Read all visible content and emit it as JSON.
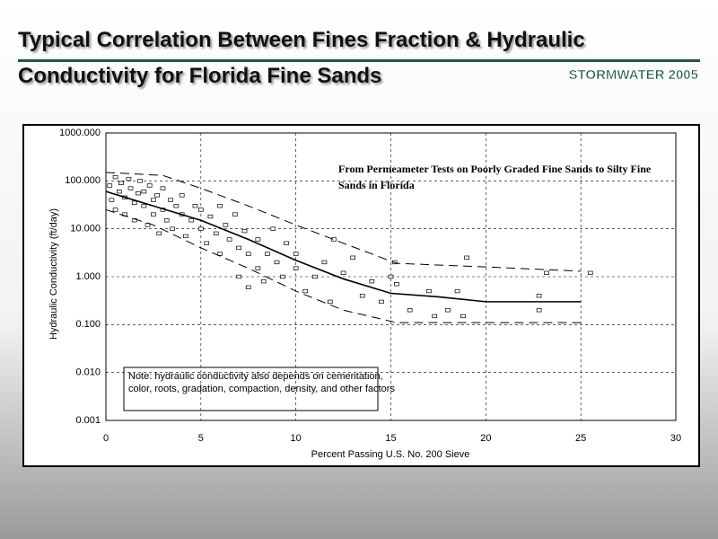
{
  "slide": {
    "title_lines": [
      "Typical Correlation Between Fines Fraction & Hydraulic",
      "Conductivity for Florida Fine Sands"
    ],
    "badge": "STORMWATER 2005"
  },
  "chart_data": {
    "type": "scatter",
    "xlabel": "Percent Passing U.S. No. 200 Sieve",
    "ylabel": "Hydraulic Conductivity (ft/day)",
    "annotation_lines": [
      "From Permeameter Tests on Poorly Graded Fine Sands to Silty Fine",
      "Sands in Florida"
    ],
    "note_lines": [
      "Note: hydraulic conductivity also depends on cementation,",
      "color, roots,  gradation, compaction, density, and other factors"
    ],
    "xlim": [
      0,
      30
    ],
    "xticks": [
      0,
      5,
      10,
      15,
      20,
      25,
      30
    ],
    "ylim": [
      0.001,
      1000
    ],
    "yscale": "log",
    "yticks": [
      {
        "value": 0.001,
        "label": "0.001"
      },
      {
        "value": 0.01,
        "label": "0.010"
      },
      {
        "value": 0.1,
        "label": "0.100"
      },
      {
        "value": 1,
        "label": "1.000"
      },
      {
        "value": 10,
        "label": "10.000"
      },
      {
        "value": 100,
        "label": "100.000"
      },
      {
        "value": 1000,
        "label": "1000.000"
      }
    ],
    "grid": true,
    "color": "#000000",
    "points": {
      "x": [
        0.2,
        0.3,
        0.5,
        0.5,
        0.7,
        0.8,
        1,
        1,
        1.2,
        1.3,
        1.5,
        1.5,
        1.7,
        1.8,
        2,
        2,
        2.2,
        2.3,
        2.5,
        2.5,
        2.7,
        2.8,
        3,
        3,
        3.2,
        3.4,
        3.5,
        3.7,
        4,
        4,
        4.2,
        4.5,
        4.7,
        5,
        5,
        5.3,
        5.5,
        5.8,
        6,
        6,
        6.3,
        6.5,
        6.8,
        7,
        7,
        7.3,
        7.5,
        7.5,
        8,
        8,
        8.3,
        8.5,
        8.8,
        9,
        9.3,
        9.5,
        10,
        10,
        10.5,
        11,
        11.5,
        11.8,
        12,
        12.5,
        13,
        13.5,
        14,
        14.5,
        15,
        15.2,
        15.3,
        16,
        17,
        17.3,
        18,
        18.5,
        18.8,
        19,
        22.8,
        22.8,
        23.2,
        25.5
      ],
      "y": [
        80,
        40,
        120,
        25,
        60,
        90,
        45,
        20,
        110,
        70,
        35,
        15,
        55,
        100,
        30,
        60,
        12,
        80,
        40,
        20,
        50,
        8,
        25,
        70,
        15,
        40,
        10,
        30,
        20,
        50,
        7,
        15,
        30,
        10,
        25,
        5,
        18,
        8,
        30,
        3,
        12,
        6,
        20,
        4,
        1,
        9,
        0.6,
        3,
        6,
        1.5,
        0.8,
        3,
        10,
        2,
        1,
        5,
        1.5,
        3,
        0.5,
        1,
        2,
        0.3,
        6,
        1.2,
        2.5,
        0.4,
        0.8,
        0.3,
        1,
        2,
        0.7,
        0.2,
        0.5,
        0.15,
        0.2,
        0.5,
        0.15,
        2.5,
        0.4,
        0.2,
        1.2,
        1.2
      ]
    },
    "lines": [
      {
        "style": "solid",
        "x": [
          0,
          2.5,
          5,
          7.5,
          10,
          12.5,
          15,
          17.5,
          20,
          25
        ],
        "y": [
          60,
          30,
          15,
          6,
          2.2,
          0.9,
          0.45,
          0.38,
          0.3,
          0.3
        ]
      },
      {
        "style": "dashed",
        "x": [
          0,
          3,
          5,
          7.5,
          10,
          12.5,
          15.3,
          20,
          25
        ],
        "y": [
          150,
          130,
          70,
          30,
          12,
          5,
          1.9,
          1.6,
          1.3
        ]
      },
      {
        "style": "dashed",
        "x": [
          0,
          2.5,
          5,
          7.5,
          10,
          12.5,
          15.3,
          20,
          25
        ],
        "y": [
          25,
          12,
          4,
          1.5,
          0.5,
          0.2,
          0.11,
          0.11,
          0.11
        ]
      }
    ]
  }
}
